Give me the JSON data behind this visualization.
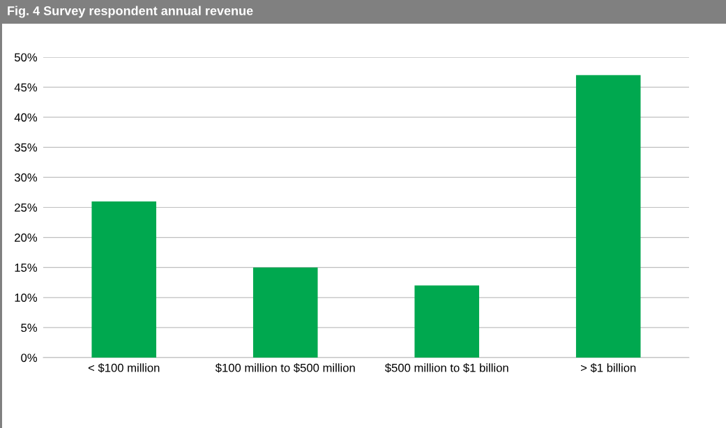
{
  "chart_data": {
    "type": "bar",
    "title": "Fig. 4 Survey respondent annual revenue",
    "categories": [
      "< $100 million",
      "$100 million to $500 million",
      "$500 million to $1 billion",
      "> $1 billion"
    ],
    "values": [
      26,
      15,
      12,
      47
    ],
    "color": "#00a84f",
    "ylim": [
      0,
      50
    ],
    "yticks": [
      {
        "value": 0,
        "label": "0%"
      },
      {
        "value": 5,
        "label": "5%"
      },
      {
        "value": 10,
        "label": "10%"
      },
      {
        "value": 15,
        "label": "15%"
      },
      {
        "value": 20,
        "label": "20%"
      },
      {
        "value": 25,
        "label": "25%"
      },
      {
        "value": 30,
        "label": "30%"
      },
      {
        "value": 35,
        "label": "35%"
      },
      {
        "value": 40,
        "label": "40%"
      },
      {
        "value": 45,
        "label": "45%"
      },
      {
        "value": 50,
        "label": "50%"
      }
    ],
    "grid": "y",
    "legend": false
  }
}
